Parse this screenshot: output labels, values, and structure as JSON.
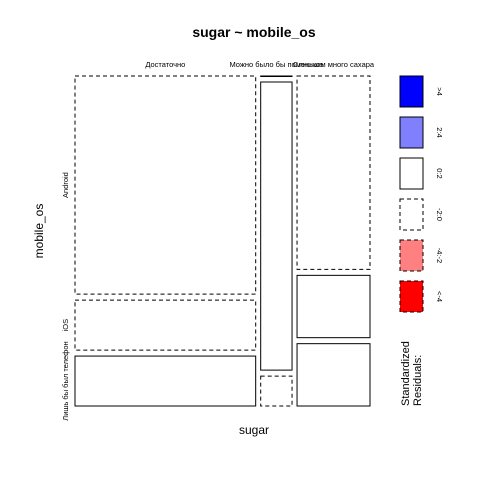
{
  "chart_data": {
    "type": "mosaic",
    "title": "sugar ~ mobile_os",
    "xlabel": "sugar",
    "ylabel": "mobile_os",
    "x_categories": [
      "Достаточно",
      "Можно было бы поменьше",
      "Слишком много сахара"
    ],
    "y_categories": [
      "Android",
      "iOS",
      "Лишь бы был телефон"
    ],
    "column_proportions": [
      0.634,
      0.11,
      0.256
    ],
    "cells": [
      {
        "x": "Достаточно",
        "y": "Android",
        "proportion": 0.686,
        "residual_class": "-2:0"
      },
      {
        "x": "Достаточно",
        "y": "iOS",
        "proportion": 0.157,
        "residual_class": "-2:0"
      },
      {
        "x": "Достаточно",
        "y": "Лишь бы был телефон",
        "proportion": 0.157,
        "residual_class": "0:2"
      },
      {
        "x": "Можно было бы поменьше",
        "y": "Android",
        "proportion": 0.0,
        "residual_class": "0:2"
      },
      {
        "x": "Можно было бы поменьше",
        "y": "iOS",
        "proportion": 0.906,
        "residual_class": "0:2"
      },
      {
        "x": "Можно было бы поменьше",
        "y": "Лишь бы был телефон",
        "proportion": 0.094,
        "residual_class": "-2:0"
      },
      {
        "x": "Слишком много сахара",
        "y": "Android",
        "proportion": 0.608,
        "residual_class": "-2:0"
      },
      {
        "x": "Слишком много сахара",
        "y": "iOS",
        "proportion": 0.196,
        "residual_class": "0:2"
      },
      {
        "x": "Слишком много сахара",
        "y": "Лишь бы был телефон",
        "proportion": 0.196,
        "residual_class": "0:2"
      }
    ],
    "legend": {
      "title_line1": "Standardized",
      "title_line2": "Residuals:",
      "placement": "right",
      "entries": [
        {
          "label": ">4",
          "fill": "#0000ff",
          "dashed": false
        },
        {
          "label": "2:4",
          "fill": "#8080ff",
          "dashed": false
        },
        {
          "label": "0:2",
          "fill": "#ffffff",
          "dashed": false
        },
        {
          "label": "-2:0",
          "fill": "#ffffff",
          "dashed": true
        },
        {
          "label": "-4:-2",
          "fill": "#ff8080",
          "dashed": true
        },
        {
          "label": "<-4",
          "fill": "#ff0000",
          "dashed": true
        }
      ]
    }
  }
}
